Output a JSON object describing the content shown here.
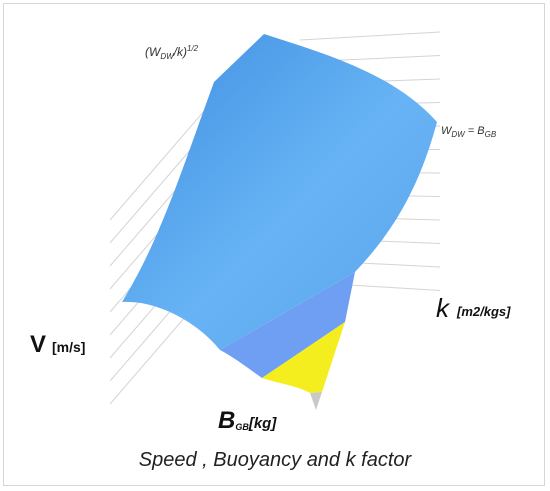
{
  "chart_data": {
    "type": "surface",
    "title": "Speed , Buoyancy and k factor",
    "axes": {
      "z": {
        "name": "V",
        "unit": "[m/s]"
      },
      "y": {
        "name": "k",
        "unit": "[m2/kgs]"
      },
      "x": {
        "name": "B",
        "subscript": "GB",
        "unit": "[kg]"
      }
    },
    "annotations": [
      {
        "text": "(W_DW/k)^1/2",
        "base": "(W",
        "sub": "DW",
        "mid": "/k)",
        "sup": "1/2"
      },
      {
        "text": "W_DW = B_GB",
        "base": "W",
        "sub": "DW",
        "mid": " = B",
        "sub2": "GB"
      }
    ],
    "regions": [
      {
        "name": "main surface",
        "color": "#5aa9ec"
      },
      {
        "name": "lower band",
        "color": "#6f9ff2"
      },
      {
        "name": "corner region",
        "color": "#f5ee1e"
      },
      {
        "name": "tip",
        "color": "#c9c9c9"
      }
    ],
    "grid": true
  }
}
